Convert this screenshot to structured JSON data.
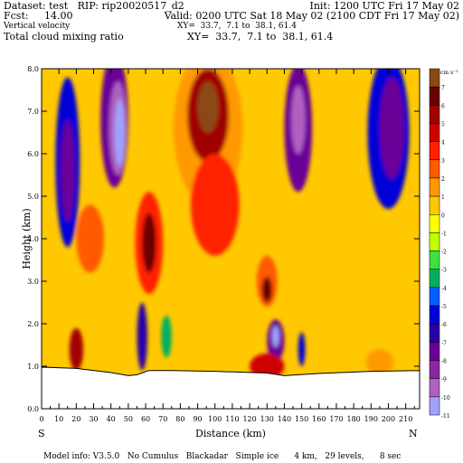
{
  "header": {
    "line1_left": "Dataset: test   RIP: rip20020517_d2",
    "line1_right": "Init: 1200 UTC Fri 17 May 02",
    "line2_left": "Fcst:     14.00",
    "line2_right": "Valid: 0200 UTC Sat 18 May 02 (2100 CDT Fri 17 May 02)",
    "line3_left": "Vertical velocity",
    "line3_right": "XY=  33.7,  7.1 to  38.1, 61.4",
    "line4_left": "Total cloud mixing ratio",
    "line4_right": "XY=  33.7,  7.1 to  38.1, 61.4"
  },
  "footer": {
    "model_info": "Model info: V3.5.0   No Cumulus   Blackadar   Simple ice      4 km,   29 levels,      8 sec"
  },
  "chart_data": {
    "type": "heatmap",
    "xlabel": "Distance (km)",
    "ylabel": "Height (km)",
    "xlim": [
      0,
      218
    ],
    "ylim": [
      0,
      8
    ],
    "x_ticks": [
      "0",
      "10",
      "20",
      "30",
      "40",
      "50",
      "60",
      "70",
      "80",
      "90",
      "100",
      "110",
      "120",
      "130",
      "140",
      "150",
      "160",
      "170",
      "180",
      "190",
      "200",
      "210"
    ],
    "y_ticks": [
      "0.0",
      "1.0",
      "2.0",
      "3.0",
      "4.0",
      "5.0",
      "6.0",
      "7.0",
      "8.0"
    ],
    "left_end_label": "S",
    "right_end_label": "N",
    "colorbar": {
      "unit": "cm s⁻¹",
      "levels": [
        "7",
        "6",
        "5",
        "4",
        "3",
        "2",
        "1",
        "0",
        "-1",
        "-2",
        "-3",
        "-4",
        "-5",
        "-6",
        "-7",
        "-8",
        "-9",
        "-10",
        "-11"
      ],
      "colors": [
        "#8a4a12",
        "#6a0000",
        "#a00000",
        "#d00000",
        "#ff2000",
        "#ff5a00",
        "#ff9900",
        "#ffc800",
        "#ffff00",
        "#bfff00",
        "#40e040",
        "#00b060",
        "#0060ff",
        "#0000d8",
        "#2a00a8",
        "#6a0098",
        "#8a28a0",
        "#b060c0",
        "#a0a0ff"
      ]
    },
    "terrain_km": [
      [
        0,
        0.98
      ],
      [
        20,
        0.95
      ],
      [
        40,
        0.85
      ],
      [
        50,
        0.78
      ],
      [
        55,
        0.8
      ],
      [
        62,
        0.9
      ],
      [
        75,
        0.9
      ],
      [
        100,
        0.88
      ],
      [
        130,
        0.84
      ],
      [
        140,
        0.78
      ],
      [
        160,
        0.83
      ],
      [
        190,
        0.88
      ],
      [
        218,
        0.9
      ]
    ],
    "features": [
      {
        "x": 42,
        "y": 6.8,
        "rx": 8,
        "ry": 1.6,
        "value": -8
      },
      {
        "x": 44,
        "y": 6.6,
        "rx": 5,
        "ry": 1.1,
        "value": -10
      },
      {
        "x": 45,
        "y": 6.5,
        "rx": 3,
        "ry": 0.8,
        "value": -11
      },
      {
        "x": 96,
        "y": 6.6,
        "rx": 20,
        "ry": 1.8,
        "value": 1
      },
      {
        "x": 96,
        "y": 6.9,
        "rx": 12,
        "ry": 1.1,
        "value": 5
      },
      {
        "x": 96,
        "y": 7.1,
        "rx": 6,
        "ry": 0.6,
        "value": 7
      },
      {
        "x": 100,
        "y": 4.8,
        "rx": 14,
        "ry": 1.2,
        "value": 3
      },
      {
        "x": 148,
        "y": 6.6,
        "rx": 8,
        "ry": 1.5,
        "value": -8
      },
      {
        "x": 148,
        "y": 6.8,
        "rx": 4,
        "ry": 0.8,
        "value": -10
      },
      {
        "x": 200,
        "y": 6.5,
        "rx": 12,
        "ry": 1.8,
        "value": -6
      },
      {
        "x": 202,
        "y": 6.6,
        "rx": 7,
        "ry": 1.2,
        "value": -8
      },
      {
        "x": 15,
        "y": 5.8,
        "rx": 7,
        "ry": 2.0,
        "value": -6
      },
      {
        "x": 15,
        "y": 5.6,
        "rx": 4,
        "ry": 1.2,
        "value": -8
      },
      {
        "x": 62,
        "y": 3.9,
        "rx": 8,
        "ry": 1.2,
        "value": 3
      },
      {
        "x": 62,
        "y": 3.9,
        "rx": 4,
        "ry": 0.7,
        "value": 6
      },
      {
        "x": 130,
        "y": 3.0,
        "rx": 6,
        "ry": 0.6,
        "value": 2
      },
      {
        "x": 130,
        "y": 2.8,
        "rx": 3,
        "ry": 0.3,
        "value": 6
      },
      {
        "x": 28,
        "y": 4.0,
        "rx": 8,
        "ry": 0.8,
        "value": 2
      },
      {
        "x": 135,
        "y": 1.6,
        "rx": 5,
        "ry": 0.5,
        "value": -8
      },
      {
        "x": 135,
        "y": 1.7,
        "rx": 2,
        "ry": 0.25,
        "value": -11
      },
      {
        "x": 58,
        "y": 1.7,
        "rx": 3,
        "ry": 0.8,
        "value": -7
      },
      {
        "x": 150,
        "y": 1.4,
        "rx": 2,
        "ry": 0.4,
        "value": -6
      },
      {
        "x": 72,
        "y": 1.7,
        "rx": 3,
        "ry": 0.5,
        "value": -4
      },
      {
        "x": 130,
        "y": 1.0,
        "rx": 10,
        "ry": 0.3,
        "value": 4
      },
      {
        "x": 20,
        "y": 1.4,
        "rx": 4,
        "ry": 0.5,
        "value": 5
      },
      {
        "x": 195,
        "y": 1.1,
        "rx": 8,
        "ry": 0.3,
        "value": 1
      }
    ]
  }
}
